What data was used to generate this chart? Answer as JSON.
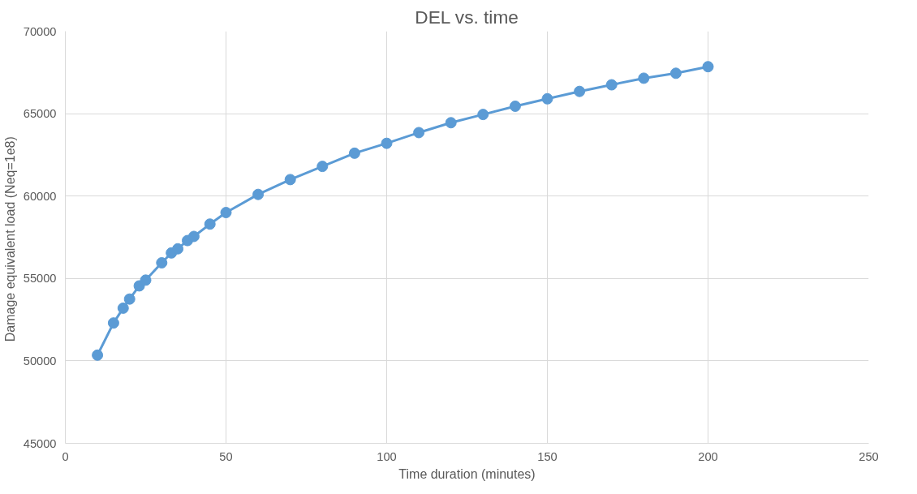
{
  "chart_data": {
    "type": "line",
    "title": "DEL vs. time",
    "xlabel": "Time duration (minutes)",
    "ylabel": "Damage equivalent load  (Neq=1e8)",
    "x": [
      10,
      15,
      18,
      20,
      23,
      25,
      30,
      33,
      35,
      38,
      40,
      45,
      50,
      60,
      70,
      80,
      90,
      100,
      110,
      120,
      130,
      140,
      150,
      160,
      170,
      180,
      190,
      200
    ],
    "series": [
      {
        "color": "#5b9bd5",
        "values": [
          50350,
          52300,
          53200,
          53750,
          54550,
          54900,
          55950,
          56550,
          56800,
          57300,
          57550,
          58300,
          59000,
          60100,
          61000,
          61800,
          62600,
          63200,
          63850,
          64450,
          64950,
          65450,
          65900,
          66350,
          66750,
          67150,
          67450,
          67850
        ]
      }
    ],
    "xlim": [
      0,
      250
    ],
    "xticks": [
      0,
      50,
      100,
      150,
      200,
      250
    ],
    "ylim": [
      45000,
      70000
    ],
    "yticks": [
      45000,
      50000,
      55000,
      60000,
      65000,
      70000
    ],
    "grid": true,
    "marker": "circle",
    "line_style": "solid"
  }
}
